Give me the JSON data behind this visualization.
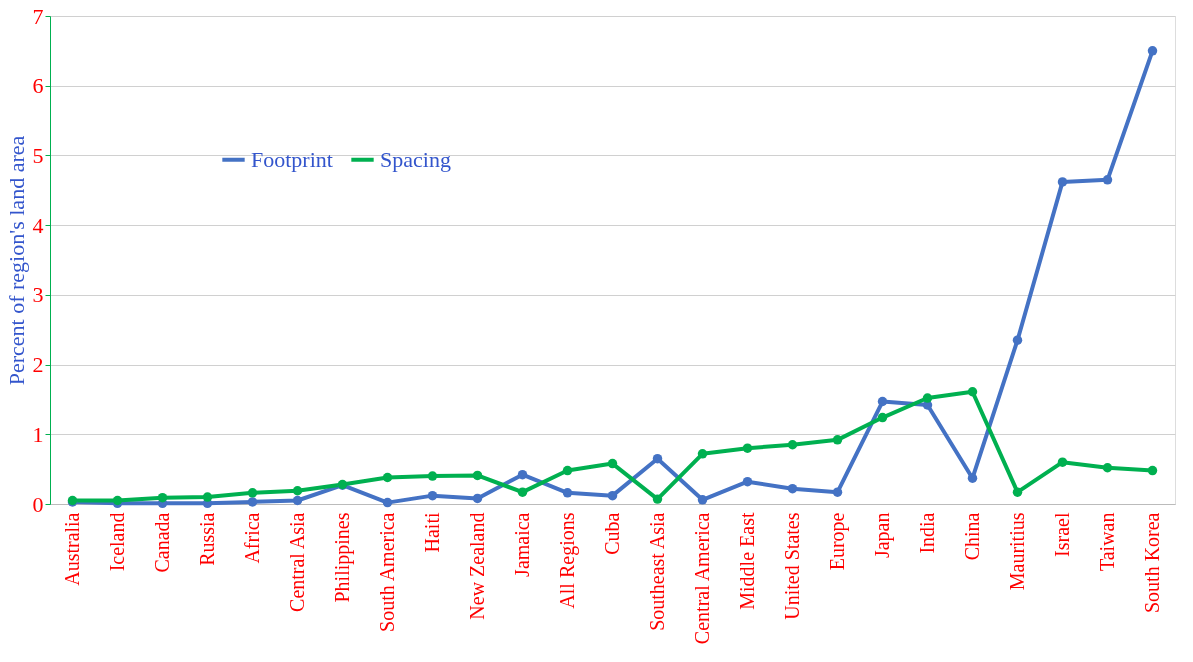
{
  "chart_data": {
    "type": "line",
    "ylabel": "Percent of region's land area",
    "categories": [
      "Australia",
      "Iceland",
      "Canada",
      "Russia",
      "Africa",
      "Central Asia",
      "Philippines",
      "South America",
      "Haiti",
      "New Zealand",
      "Jamaica",
      "All Regions",
      "Cuba",
      "Southeast Asia",
      "Central America",
      "Middle East",
      "United States",
      "Europe",
      "Japan",
      "India",
      "China",
      "Mauritius",
      "Israel",
      "Taiwan",
      "South Korea"
    ],
    "series": [
      {
        "name": "Footprint",
        "color": "#4472c4",
        "values": [
          0.03,
          0.01,
          0.01,
          0.01,
          0.03,
          0.05,
          0.27,
          0.02,
          0.12,
          0.08,
          0.42,
          0.16,
          0.12,
          0.65,
          0.06,
          0.32,
          0.22,
          0.17,
          1.47,
          1.42,
          0.37,
          2.35,
          4.62,
          4.65,
          6.5
        ]
      },
      {
        "name": "Spacing",
        "color": "#00b050",
        "values": [
          0.05,
          0.05,
          0.09,
          0.1,
          0.16,
          0.19,
          0.28,
          0.38,
          0.4,
          0.41,
          0.17,
          0.48,
          0.58,
          0.07,
          0.72,
          0.8,
          0.85,
          0.92,
          1.24,
          1.52,
          1.61,
          0.17,
          0.6,
          0.52,
          0.48
        ]
      }
    ],
    "ylim": [
      0,
      7
    ],
    "yticks": [
      0,
      1,
      2,
      3,
      4,
      5,
      6,
      7
    ],
    "grid": "y",
    "legend": "top left",
    "marker": "circle",
    "line_style": "solid"
  }
}
